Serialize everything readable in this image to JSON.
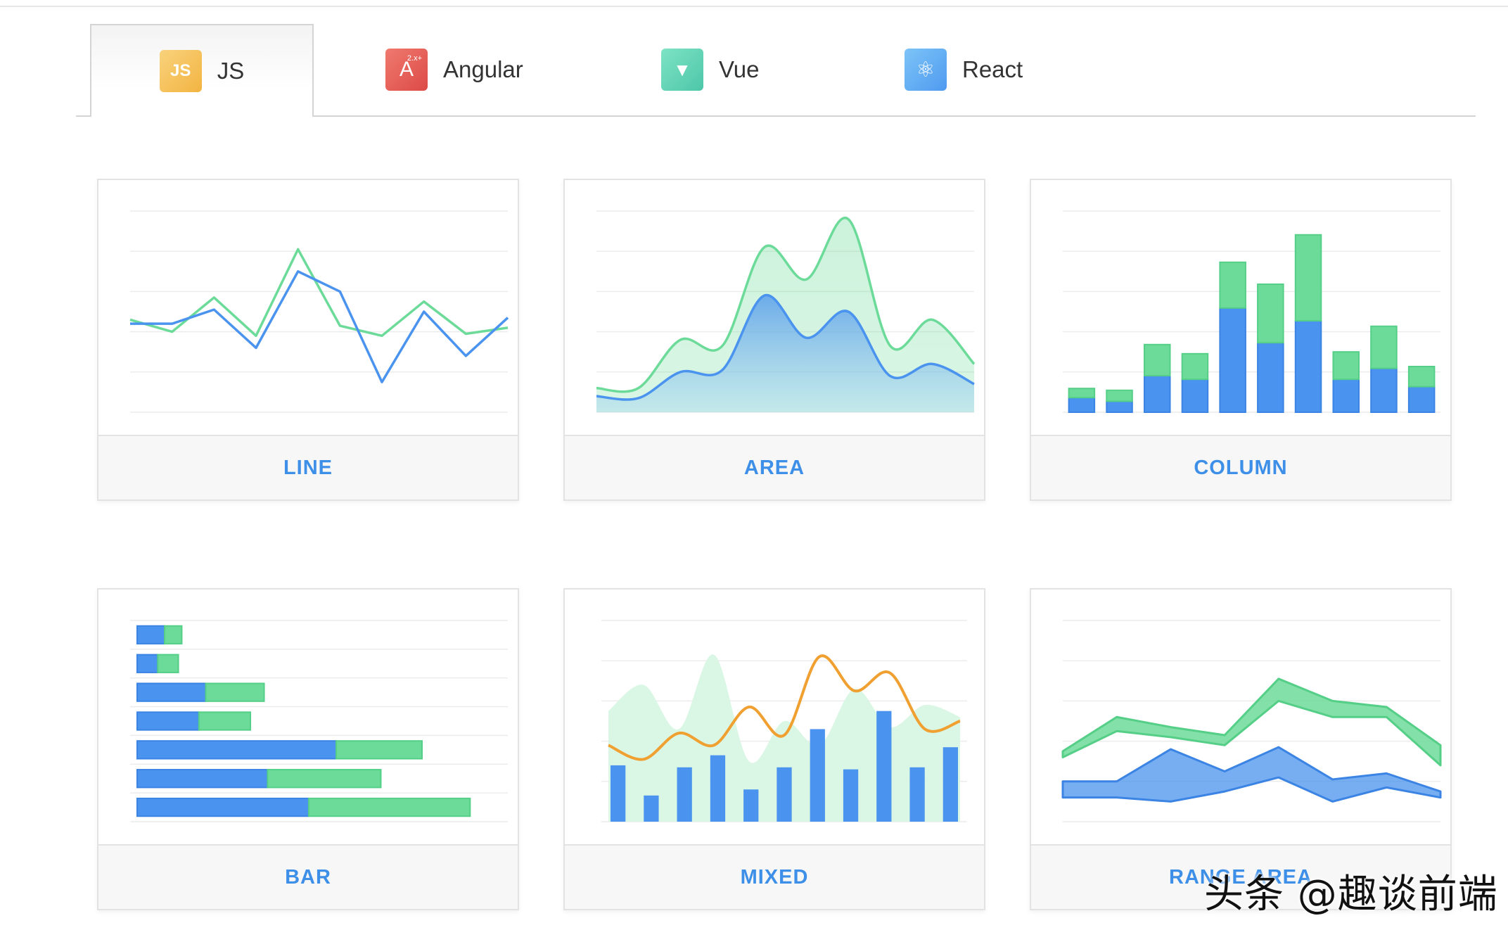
{
  "tabs": [
    {
      "id": "js",
      "label": "JS",
      "logo_text": "JS",
      "color": "#f4c35a"
    },
    {
      "id": "angular",
      "label": "Angular",
      "logo_text": "A",
      "logo_sup": "2.x+",
      "color": "#e45b55"
    },
    {
      "id": "vue",
      "label": "Vue",
      "logo_text": "▼",
      "color": "#5fd3b3"
    },
    {
      "id": "react",
      "label": "React",
      "logo_text": "⚛",
      "color": "#5aaaf3"
    }
  ],
  "active_tab": "JS",
  "colors": {
    "blue": "#4a93ee",
    "green": "#6cdb99",
    "orange": "#f0a030",
    "label": "#3d8fe8"
  },
  "cards": [
    {
      "id": "line",
      "label": "LINE"
    },
    {
      "id": "area",
      "label": "AREA"
    },
    {
      "id": "column",
      "label": "COLUMN"
    },
    {
      "id": "bar",
      "label": "BAR"
    },
    {
      "id": "mixed",
      "label": "MIXED"
    },
    {
      "id": "range",
      "label": "RANGE AREA"
    }
  ],
  "watermark": "头条 @趣谈前端",
  "chart_data": [
    {
      "type": "line",
      "title": "LINE",
      "ylim": [
        0,
        100
      ],
      "series": [
        {
          "name": "green",
          "values": [
            46,
            40,
            57,
            38,
            81,
            43,
            38,
            55,
            39,
            42
          ]
        },
        {
          "name": "blue",
          "values": [
            44,
            44,
            51,
            32,
            70,
            60,
            15,
            50,
            28,
            47
          ]
        }
      ]
    },
    {
      "type": "area",
      "title": "AREA",
      "ylim": [
        0,
        100
      ],
      "series": [
        {
          "name": "green",
          "values": [
            12,
            12,
            36,
            33,
            82,
            66,
            96,
            33,
            46,
            24
          ]
        },
        {
          "name": "blue",
          "values": [
            8,
            7,
            20,
            21,
            58,
            37,
            50,
            18,
            24,
            14
          ]
        }
      ]
    },
    {
      "type": "bar",
      "title": "COLUMN",
      "stacked": true,
      "ylim": [
        0,
        100
      ],
      "series": [
        {
          "name": "blue",
          "values": [
            8,
            6,
            20,
            18,
            57,
            38,
            50,
            18,
            24,
            14
          ]
        },
        {
          "name": "green",
          "values": [
            5,
            6,
            17,
            14,
            25,
            32,
            47,
            15,
            23,
            11
          ]
        }
      ]
    },
    {
      "type": "bar",
      "title": "BAR",
      "orientation": "horizontal",
      "stacked": true,
      "xlim": [
        0,
        100
      ],
      "series": [
        {
          "name": "blue",
          "values": [
            8,
            6,
            20,
            18,
            58,
            38,
            50
          ]
        },
        {
          "name": "green",
          "values": [
            5,
            6,
            17,
            15,
            25,
            33,
            47
          ]
        }
      ]
    },
    {
      "type": "bar",
      "title": "MIXED",
      "ylim": [
        0,
        100
      ],
      "series": [
        {
          "name": "bars",
          "values": [
            28,
            13,
            27,
            33,
            16,
            27,
            46,
            26,
            55,
            27,
            37
          ]
        },
        {
          "name": "area",
          "values": [
            55,
            68,
            46,
            83,
            30,
            50,
            38,
            66,
            47,
            58,
            52
          ]
        },
        {
          "name": "line",
          "values": [
            38,
            31,
            44,
            38,
            57,
            43,
            82,
            65,
            74,
            46,
            50
          ]
        }
      ]
    },
    {
      "type": "area",
      "title": "RANGE AREA",
      "ylim": [
        0,
        100
      ],
      "series": [
        {
          "name": "green_low",
          "values": [
            32,
            45,
            42,
            38,
            60,
            52,
            52,
            28
          ]
        },
        {
          "name": "green_high",
          "values": [
            35,
            52,
            47,
            43,
            71,
            60,
            57,
            38
          ]
        },
        {
          "name": "blue_low",
          "values": [
            12,
            12,
            10,
            15,
            22,
            10,
            17,
            12
          ]
        },
        {
          "name": "blue_high",
          "values": [
            20,
            20,
            36,
            25,
            37,
            21,
            24,
            15
          ]
        }
      ]
    }
  ]
}
